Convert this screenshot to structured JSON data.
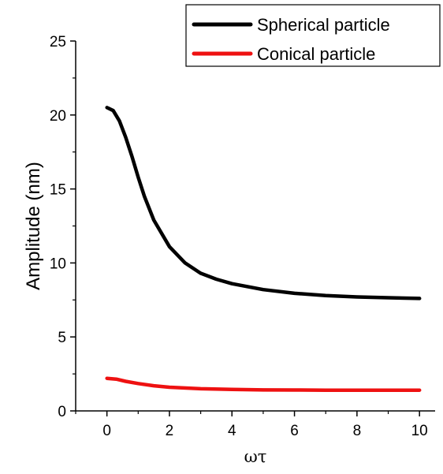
{
  "chart_data": {
    "type": "line",
    "xlabel": "ωτ",
    "ylabel": "Amplitude (nm)",
    "xlim": [
      -1,
      10.5
    ],
    "ylim": [
      0,
      25
    ],
    "x_ticks": [
      0,
      2,
      4,
      6,
      8,
      10
    ],
    "y_ticks": [
      0,
      5,
      10,
      15,
      20,
      25
    ],
    "x_tick_labels": [
      "0",
      "2",
      "4",
      "6",
      "8",
      "10"
    ],
    "y_tick_labels": [
      "0",
      "5",
      "10",
      "15",
      "20",
      "25"
    ],
    "grid": false,
    "legend_position": "top-right",
    "series": [
      {
        "name": "Spherical particle",
        "color": "#000000",
        "x": [
          0,
          0.2,
          0.4,
          0.6,
          0.8,
          1.0,
          1.2,
          1.5,
          2.0,
          2.5,
          3.0,
          3.5,
          4.0,
          5.0,
          6.0,
          7.0,
          8.0,
          9.0,
          10.0
        ],
        "y": [
          20.5,
          20.3,
          19.6,
          18.5,
          17.2,
          15.8,
          14.5,
          12.9,
          11.1,
          10.0,
          9.3,
          8.9,
          8.6,
          8.2,
          7.95,
          7.8,
          7.7,
          7.65,
          7.6
        ]
      },
      {
        "name": "Conical particle",
        "color": "#ee1111",
        "x": [
          0,
          0.3,
          0.6,
          1.0,
          1.5,
          2.0,
          3.0,
          4.0,
          5.0,
          6.0,
          7.0,
          8.0,
          9.0,
          10.0
        ],
        "y": [
          2.2,
          2.15,
          2.0,
          1.85,
          1.7,
          1.6,
          1.5,
          1.45,
          1.42,
          1.41,
          1.4,
          1.4,
          1.4,
          1.4
        ]
      }
    ]
  }
}
